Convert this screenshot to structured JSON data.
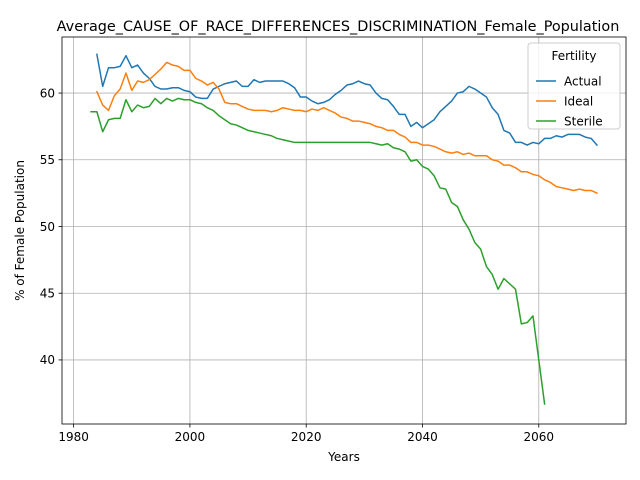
{
  "chart_data": {
    "type": "line",
    "title": "Average_CAUSE_OF_RACE_DIFFERENCES_DISCRIMINATION_Female_Population",
    "xlabel": "Years",
    "ylabel": "% of Female Population",
    "xlim": [
      1978,
      2075
    ],
    "ylim": [
      35.2,
      64.2
    ],
    "xticks": [
      1980,
      2000,
      2020,
      2040,
      2060
    ],
    "yticks": [
      40,
      45,
      50,
      55,
      60
    ],
    "grid": true,
    "legend": {
      "title": "Fertility",
      "position": "top-right"
    },
    "series": [
      {
        "name": "Actual",
        "color": "#1f77b4",
        "x": [
          1984,
          1985,
          1986,
          1987,
          1988,
          1989,
          1990,
          1991,
          1992,
          1993,
          1994,
          1995,
          1996,
          1997,
          1998,
          1999,
          2000,
          2001,
          2002,
          2003,
          2004,
          2005,
          2006,
          2007,
          2008,
          2009,
          2010,
          2011,
          2012,
          2013,
          2014,
          2015,
          2016,
          2017,
          2018,
          2019,
          2020,
          2021,
          2022,
          2023,
          2024,
          2025,
          2026,
          2027,
          2028,
          2029,
          2030,
          2031,
          2032,
          2033,
          2034,
          2035,
          2036,
          2037,
          2038,
          2039,
          2040,
          2041,
          2042,
          2043,
          2044,
          2045,
          2046,
          2047,
          2048,
          2049,
          2050,
          2051,
          2052,
          2053,
          2054,
          2055,
          2056,
          2057,
          2058,
          2059,
          2060,
          2061,
          2062,
          2063,
          2064,
          2065,
          2066,
          2067,
          2068,
          2069,
          2070
        ],
        "values": [
          62.9,
          60.5,
          61.9,
          61.9,
          62.0,
          62.8,
          61.9,
          62.1,
          61.5,
          61.1,
          60.5,
          60.3,
          60.3,
          60.4,
          60.4,
          60.2,
          60.1,
          59.7,
          59.6,
          59.6,
          60.3,
          60.5,
          60.7,
          60.8,
          60.9,
          60.5,
          60.5,
          61.0,
          60.8,
          60.9,
          60.9,
          60.9,
          60.9,
          60.7,
          60.4,
          59.7,
          59.7,
          59.4,
          59.2,
          59.3,
          59.5,
          59.9,
          60.2,
          60.6,
          60.7,
          60.9,
          60.7,
          60.6,
          60.0,
          59.6,
          59.5,
          59.0,
          58.4,
          58.4,
          57.5,
          57.8,
          57.4,
          57.7,
          58.0,
          58.6,
          59.0,
          59.4,
          60.0,
          60.1,
          60.5,
          60.3,
          60.0,
          59.7,
          58.9,
          58.4,
          57.2,
          57.0,
          56.3,
          56.3,
          56.1,
          56.3,
          56.2,
          56.6,
          56.6,
          56.8,
          56.7,
          56.9,
          56.9,
          56.9,
          56.7,
          56.6,
          56.1
        ]
      },
      {
        "name": "Ideal",
        "color": "#ff7f0e",
        "x": [
          1984,
          1985,
          1986,
          1987,
          1988,
          1989,
          1990,
          1991,
          1992,
          1993,
          1994,
          1995,
          1996,
          1997,
          1998,
          1999,
          2000,
          2001,
          2002,
          2003,
          2004,
          2005,
          2006,
          2007,
          2008,
          2009,
          2010,
          2011,
          2012,
          2013,
          2014,
          2015,
          2016,
          2017,
          2018,
          2019,
          2020,
          2021,
          2022,
          2023,
          2024,
          2025,
          2026,
          2027,
          2028,
          2029,
          2030,
          2031,
          2032,
          2033,
          2034,
          2035,
          2036,
          2037,
          2038,
          2039,
          2040,
          2041,
          2042,
          2043,
          2044,
          2045,
          2046,
          2047,
          2048,
          2049,
          2050,
          2051,
          2052,
          2053,
          2054,
          2055,
          2056,
          2057,
          2058,
          2059,
          2060,
          2061,
          2062,
          2063,
          2064,
          2065,
          2066,
          2067,
          2068,
          2069,
          2070
        ],
        "values": [
          60.1,
          59.1,
          58.7,
          59.8,
          60.3,
          61.5,
          60.2,
          60.9,
          60.8,
          61.0,
          61.4,
          61.8,
          62.3,
          62.1,
          62.0,
          61.7,
          61.7,
          61.1,
          60.9,
          60.6,
          60.8,
          60.3,
          59.3,
          59.2,
          59.2,
          59.0,
          58.8,
          58.7,
          58.7,
          58.7,
          58.6,
          58.7,
          58.9,
          58.8,
          58.7,
          58.7,
          58.6,
          58.8,
          58.7,
          58.9,
          58.7,
          58.5,
          58.2,
          58.1,
          57.9,
          57.9,
          57.8,
          57.7,
          57.5,
          57.4,
          57.2,
          57.2,
          56.9,
          56.7,
          56.3,
          56.3,
          56.1,
          56.1,
          56.0,
          55.8,
          55.6,
          55.5,
          55.6,
          55.4,
          55.5,
          55.3,
          55.3,
          55.3,
          55.0,
          54.9,
          54.6,
          54.6,
          54.4,
          54.1,
          54.1,
          53.9,
          53.8,
          53.5,
          53.3,
          53.0,
          52.9,
          52.8,
          52.7,
          52.8,
          52.7,
          52.7,
          52.5
        ]
      },
      {
        "name": "Sterile",
        "color": "#2ca02c",
        "x": [
          1983,
          1984,
          1985,
          1986,
          1987,
          1988,
          1989,
          1990,
          1991,
          1992,
          1993,
          1994,
          1995,
          1996,
          1997,
          1998,
          1999,
          2000,
          2001,
          2002,
          2003,
          2004,
          2005,
          2006,
          2007,
          2008,
          2009,
          2010,
          2011,
          2012,
          2013,
          2014,
          2015,
          2016,
          2017,
          2018,
          2019,
          2020,
          2021,
          2022,
          2023,
          2024,
          2025,
          2026,
          2027,
          2028,
          2029,
          2030,
          2031,
          2032,
          2033,
          2034,
          2035,
          2036,
          2037,
          2038,
          2039,
          2040,
          2041,
          2042,
          2043,
          2044,
          2045,
          2046,
          2047,
          2048,
          2049,
          2050,
          2051,
          2052,
          2053,
          2054,
          2055,
          2056,
          2057,
          2058,
          2059,
          2060,
          2061
        ],
        "values": [
          58.6,
          58.6,
          57.1,
          58.0,
          58.1,
          58.1,
          59.5,
          58.6,
          59.1,
          58.9,
          59.0,
          59.6,
          59.2,
          59.6,
          59.4,
          59.6,
          59.5,
          59.5,
          59.3,
          59.2,
          58.9,
          58.7,
          58.3,
          58.0,
          57.7,
          57.6,
          57.4,
          57.2,
          57.1,
          57.0,
          56.9,
          56.8,
          56.6,
          56.5,
          56.4,
          56.3,
          56.3,
          56.3,
          56.3,
          56.3,
          56.3,
          56.3,
          56.3,
          56.3,
          56.3,
          56.3,
          56.3,
          56.3,
          56.3,
          56.2,
          56.1,
          56.2,
          55.9,
          55.8,
          55.6,
          54.9,
          55.0,
          54.5,
          54.3,
          53.8,
          52.9,
          52.8,
          51.8,
          51.5,
          50.5,
          49.8,
          48.8,
          48.3,
          47.0,
          46.4,
          45.3,
          46.1,
          45.7,
          45.3,
          42.7,
          42.8,
          43.3,
          40.0,
          36.7
        ]
      }
    ]
  }
}
